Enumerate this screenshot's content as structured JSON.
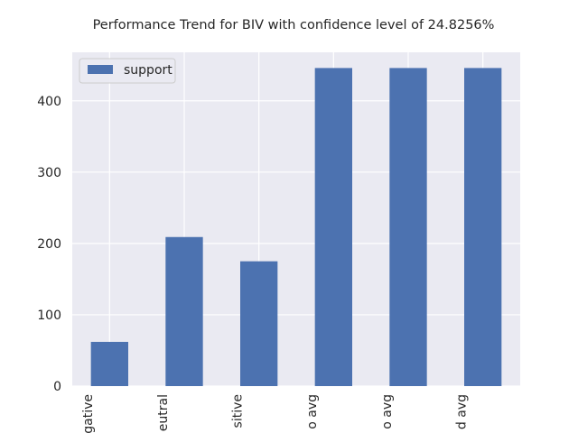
{
  "chart_data": {
    "type": "bar",
    "title": "Performance Trend for BIV with confidence level of 24.8256%",
    "xlabel": "",
    "ylabel": "",
    "categories": [
      "negative",
      "neutral",
      "positive",
      "micro avg",
      "macro avg",
      "weighted avg"
    ],
    "visible_category_labels": [
      "gative",
      "eutral",
      "sitive",
      "o avg",
      "o avg",
      "d avg"
    ],
    "series": [
      {
        "name": "support",
        "values": [
          62,
          209,
          175,
          446,
          446,
          446
        ]
      }
    ],
    "ylim": [
      0,
      468
    ],
    "yticks": [
      0,
      100,
      200,
      300,
      400
    ],
    "grid": true,
    "legend": "top-left",
    "colors": {
      "bar": "#4c72b0",
      "plot_background": "#eaeaf2",
      "grid": "#ffffff",
      "text": "#262626"
    }
  }
}
